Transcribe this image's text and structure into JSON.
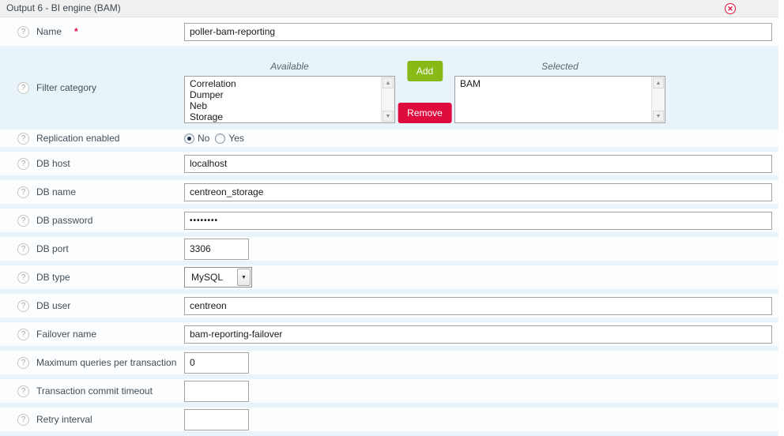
{
  "header": {
    "title": "Output 6 - BI engine (BAM)",
    "close_icon": "✕"
  },
  "colors": {
    "add_button_green": "#88b917",
    "remove_button_red": "#e00b3d",
    "close_icon_red": "#e00b3d",
    "required_asterisk_red": "#e00b3d",
    "row_separator_blue": "#e9f4fa"
  },
  "icons": {
    "help": "?",
    "scroll_up": "▲",
    "scroll_down": "▼",
    "dropdown": "▼"
  },
  "fields": {
    "name": {
      "label": "Name",
      "required_mark": "*",
      "value": "poller-bam-reporting"
    },
    "filter_category": {
      "label": "Filter category",
      "available_label": "Available",
      "selected_label": "Selected",
      "available_items": [
        "Correlation",
        "Dumper",
        "Neb",
        "Storage"
      ],
      "selected_items": [
        "BAM"
      ],
      "add_label": "Add",
      "remove_label": "Remove"
    },
    "replication": {
      "label": "Replication enabled",
      "options": [
        "No",
        "Yes"
      ],
      "selected": "No"
    },
    "db_host": {
      "label": "DB host",
      "value": "localhost"
    },
    "db_name": {
      "label": "DB name",
      "value": "centreon_storage"
    },
    "db_password": {
      "label": "DB password",
      "value": "••••••••"
    },
    "db_port": {
      "label": "DB port",
      "value": "3306"
    },
    "db_type": {
      "label": "DB type",
      "value": "MySQL"
    },
    "db_user": {
      "label": "DB user",
      "value": "centreon"
    },
    "failover": {
      "label": "Failover name",
      "value": "bam-reporting-failover"
    },
    "max_queries": {
      "label": "Maximum queries per transaction",
      "value": "0"
    },
    "commit_timeout": {
      "label": "Transaction commit timeout",
      "value": ""
    },
    "retry_interval": {
      "label": "Retry interval",
      "value": ""
    }
  }
}
